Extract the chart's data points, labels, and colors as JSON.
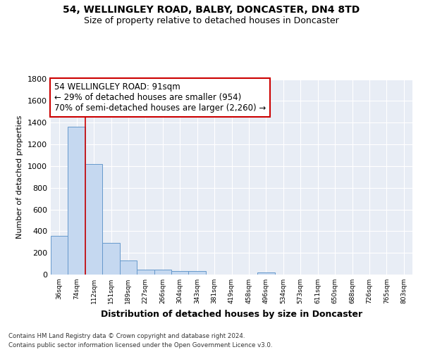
{
  "title": "54, WELLINGLEY ROAD, BALBY, DONCASTER, DN4 8TD",
  "subtitle": "Size of property relative to detached houses in Doncaster",
  "xlabel": "Distribution of detached houses by size in Doncaster",
  "ylabel": "Number of detached properties",
  "bar_labels": [
    "36sqm",
    "74sqm",
    "112sqm",
    "151sqm",
    "189sqm",
    "227sqm",
    "266sqm",
    "304sqm",
    "343sqm",
    "381sqm",
    "419sqm",
    "458sqm",
    "496sqm",
    "534sqm",
    "573sqm",
    "611sqm",
    "650sqm",
    "688sqm",
    "726sqm",
    "765sqm",
    "803sqm"
  ],
  "bar_values": [
    355,
    1365,
    1020,
    290,
    130,
    45,
    45,
    30,
    30,
    0,
    0,
    0,
    20,
    0,
    0,
    0,
    0,
    0,
    0,
    0,
    0
  ],
  "bar_color": "#c5d8f0",
  "bar_edge_color": "#6699cc",
  "vline_color": "#cc0000",
  "vline_x": 1.5,
  "ylim": [
    0,
    1800
  ],
  "yticks": [
    0,
    200,
    400,
    600,
    800,
    1000,
    1200,
    1400,
    1600,
    1800
  ],
  "annotation_line1": "54 WELLINGLEY ROAD: 91sqm",
  "annotation_line2": "← 29% of detached houses are smaller (954)",
  "annotation_line3": "70% of semi-detached houses are larger (2,260) →",
  "annotation_box_color": "#ffffff",
  "annotation_box_edge": "#cc0000",
  "footer_line1": "Contains HM Land Registry data © Crown copyright and database right 2024.",
  "footer_line2": "Contains public sector information licensed under the Open Government Licence v3.0.",
  "bg_color": "#ffffff",
  "plot_bg_color": "#e8edf5",
  "grid_color": "#ffffff",
  "title_fontsize": 10,
  "subtitle_fontsize": 9,
  "ylabel_fontsize": 8,
  "xlabel_fontsize": 9
}
